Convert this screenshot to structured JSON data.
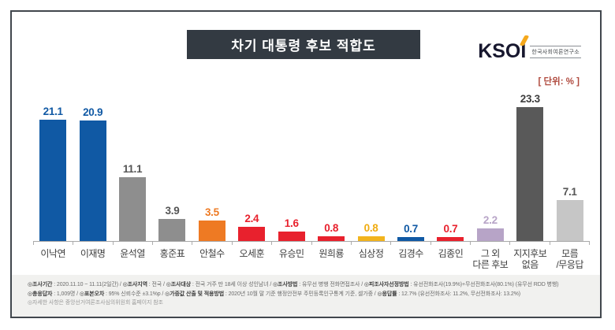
{
  "header": {
    "title": "차기 대통령 후보 적합도",
    "logo": {
      "text": "KSOI",
      "subtext": "한국사회여론연구소"
    },
    "unit_label": "[ 단위: % ]"
  },
  "chart_data": {
    "type": "bar",
    "title": "차기 대통령 후보 적합도",
    "unit": "%",
    "categories": [
      "이낙연",
      "이재명",
      "윤석열",
      "홍준표",
      "안철수",
      "오세훈",
      "유승민",
      "원희룡",
      "심상정",
      "김경수",
      "김종인",
      "그 외 다른 후보",
      "지지후보 없음",
      "모름/무응답"
    ],
    "tick_labels": [
      "이낙연",
      "이재명",
      "윤석열",
      "홍준표",
      "안철수",
      "오세훈",
      "유승민",
      "원희룡",
      "심상정",
      "김경수",
      "김종인",
      "그 외\n다른 후보",
      "지지후보\n없음",
      "모름\n/무응답"
    ],
    "values": [
      21.1,
      20.9,
      11.1,
      3.9,
      3.5,
      2.4,
      1.6,
      0.8,
      0.8,
      0.7,
      0.7,
      2.2,
      23.3,
      7.1
    ],
    "bar_colors": [
      "#1059a4",
      "#1059a4",
      "#8e8e8e",
      "#8e8e8e",
      "#ee7a23",
      "#e8212d",
      "#e8212d",
      "#e8212d",
      "#f2b41d",
      "#1059a4",
      "#e8212d",
      "#b7a4c7",
      "#595959",
      "#c6c6c6"
    ],
    "label_colors": [
      "#1059a4",
      "#1059a4",
      "#555555",
      "#555555",
      "#ee7a23",
      "#e8212d",
      "#e8212d",
      "#e8212d",
      "#f0ac10",
      "#1059a4",
      "#e8212d",
      "#b7a4c7",
      "#3d3d3d",
      "#555555"
    ],
    "ylim": [
      0,
      25
    ],
    "grid": false,
    "legend": "none",
    "xlabel": "",
    "ylabel": ""
  },
  "footer": {
    "lines": [
      {
        "muted": false,
        "segments": [
          {
            "label": "◎조사기간",
            "text": " : 2020.11.10 ~ 11.11(2일간)  / "
          },
          {
            "label": "◎조사지역",
            "text": " : 전국 / "
          },
          {
            "label": "◎조사대상",
            "text": " : 전국 거주 만 18세 이상 성인남녀 / "
          },
          {
            "label": "◎조사방법",
            "text": " : 유무선 병행 전화면접조사 / "
          },
          {
            "label": "◎피조사자선정방법",
            "text": " : 유선전화조사(19.9%)+무선전화조사(80.1%)  (유무선 RDD 병행)"
          }
        ]
      },
      {
        "muted": false,
        "segments": [
          {
            "label": "◎총응답자",
            "text": " : 1,009명 / "
          },
          {
            "label": "◎표본오차",
            "text": " : 95% 신뢰수준 ±3.1%p / "
          },
          {
            "label": "◎가중값 산출 및 적용방법",
            "text": " : 2020년 10월 말 기준 행정안전부 주민등록인구통계 기준, 셀가중 / "
          },
          {
            "label": "◎응답률",
            "text": " : 12.7% (유선전화조사: 11.2%, 무선전화조사: 13.2%)"
          }
        ]
      },
      {
        "muted": true,
        "segments": [
          {
            "text": "◎자세한 사항은 중앙선거여론조사심의위원회 홈페이지 참조"
          }
        ]
      }
    ]
  }
}
